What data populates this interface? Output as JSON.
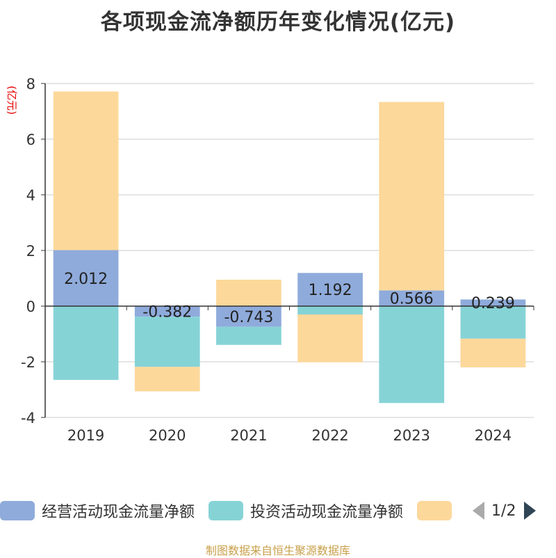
{
  "title": "各项现金流净额历年变化情况(亿元)",
  "source_note": "制图数据来自恒生聚源数据库",
  "legend": {
    "items": [
      {
        "label": "经营活动现金流量净额",
        "color": "#8fabdb"
      },
      {
        "label": "投资活动现金流量净额",
        "color": "#86d3d6"
      },
      {
        "label": "",
        "color": "#fdd89b"
      }
    ],
    "page": "1/2"
  },
  "chart_data": {
    "type": "bar",
    "stacked": true,
    "ylabel": "(亿元)",
    "ylim": [
      -4,
      8
    ],
    "yticks": [
      -4,
      -2,
      0,
      2,
      4,
      6,
      8
    ],
    "grid": true,
    "legend_position": "bottom",
    "categories": [
      "2019",
      "2020",
      "2021",
      "2022",
      "2023",
      "2024"
    ],
    "series": [
      {
        "name": "经营活动现金流量净额",
        "color": "#8fabdb",
        "values": [
          2.012,
          -0.382,
          -0.743,
          1.192,
          0.566,
          0.239
        ],
        "data_labels": [
          "2.012",
          "-0.382",
          "-0.743",
          "1.192",
          "0.566",
          "0.239"
        ]
      },
      {
        "name": "投资活动现金流量净额",
        "color": "#86d3d6",
        "values": [
          -2.65,
          -1.8,
          -0.65,
          -0.3,
          -3.48,
          -1.17
        ]
      },
      {
        "name": "",
        "color": "#fdd89b",
        "values": [
          5.7,
          -0.88,
          0.95,
          -1.72,
          6.77,
          -1.03
        ]
      }
    ]
  }
}
